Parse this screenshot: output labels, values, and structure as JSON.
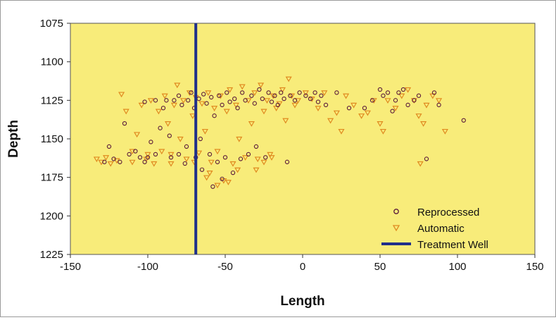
{
  "colors": {
    "plot_bg": "#f8ec7a",
    "reprocessed": "#5a1a3a",
    "automatic": "#e08a20",
    "well": "#1f2f8a"
  },
  "chart_data": {
    "type": "scatter",
    "title": "",
    "xlabel": "Length",
    "ylabel": "Depth",
    "xlim": [
      -150,
      150
    ],
    "ylim": [
      1075,
      1225
    ],
    "y_inverted": true,
    "x_ticks": [
      -150,
      -100,
      -50,
      0,
      50,
      100,
      150
    ],
    "y_ticks": [
      1075,
      1100,
      1125,
      1150,
      1175,
      1200,
      1225
    ],
    "grid": false,
    "legend_position": "bottom-right",
    "series": [
      {
        "name": "Reprocessed",
        "marker": "circle",
        "points": [
          [
            -128,
            1165
          ],
          [
            -125,
            1155
          ],
          [
            -122,
            1163
          ],
          [
            -118,
            1165
          ],
          [
            -115,
            1140
          ],
          [
            -112,
            1160
          ],
          [
            -108,
            1158
          ],
          [
            -105,
            1162
          ],
          [
            -102,
            1165
          ],
          [
            -100,
            1162
          ],
          [
            -98,
            1152
          ],
          [
            -95,
            1160
          ],
          [
            -92,
            1143
          ],
          [
            -90,
            1130
          ],
          [
            -88,
            1125
          ],
          [
            -86,
            1148
          ],
          [
            -85,
            1162
          ],
          [
            -83,
            1125
          ],
          [
            -80,
            1122
          ],
          [
            -78,
            1128
          ],
          [
            -76,
            1166
          ],
          [
            -75,
            1155
          ],
          [
            -74,
            1125
          ],
          [
            -72,
            1120
          ],
          [
            -70,
            1130
          ],
          [
            -69,
            1162
          ],
          [
            -67,
            1124
          ],
          [
            -66,
            1150
          ],
          [
            -64,
            1121
          ],
          [
            -62,
            1127
          ],
          [
            -60,
            1160
          ],
          [
            -59,
            1123
          ],
          [
            -57,
            1135
          ],
          [
            -55,
            1165
          ],
          [
            -54,
            1122
          ],
          [
            -52,
            1128
          ],
          [
            -50,
            1162
          ],
          [
            -49,
            1120
          ],
          [
            -47,
            1126
          ],
          [
            -45,
            1172
          ],
          [
            -44,
            1124
          ],
          [
            -42,
            1130
          ],
          [
            -40,
            1163
          ],
          [
            -39,
            1120
          ],
          [
            -37,
            1125
          ],
          [
            -35,
            1160
          ],
          [
            -33,
            1122
          ],
          [
            -31,
            1127
          ],
          [
            -30,
            1155
          ],
          [
            -28,
            1118
          ],
          [
            -26,
            1124
          ],
          [
            -24,
            1162
          ],
          [
            -22,
            1120
          ],
          [
            -20,
            1126
          ],
          [
            -18,
            1122
          ],
          [
            -16,
            1128
          ],
          [
            -14,
            1120
          ],
          [
            -12,
            1124
          ],
          [
            -10,
            1165
          ],
          [
            -8,
            1122
          ],
          [
            -5,
            1125
          ],
          [
            -2,
            1120
          ],
          [
            2,
            1122
          ],
          [
            5,
            1124
          ],
          [
            8,
            1120
          ],
          [
            10,
            1126
          ],
          [
            12,
            1122
          ],
          [
            15,
            1128
          ],
          [
            22,
            1120
          ],
          [
            30,
            1130
          ],
          [
            40,
            1130
          ],
          [
            45,
            1125
          ],
          [
            50,
            1118
          ],
          [
            52,
            1122
          ],
          [
            55,
            1120
          ],
          [
            58,
            1132
          ],
          [
            60,
            1125
          ],
          [
            62,
            1120
          ],
          [
            65,
            1118
          ],
          [
            68,
            1128
          ],
          [
            72,
            1125
          ],
          [
            75,
            1122
          ],
          [
            80,
            1163
          ],
          [
            85,
            1120
          ],
          [
            88,
            1128
          ],
          [
            104,
            1138
          ],
          [
            -58,
            1181
          ],
          [
            -52,
            1176
          ],
          [
            -65,
            1170
          ],
          [
            -80,
            1160
          ],
          [
            -95,
            1125
          ],
          [
            -102,
            1126
          ]
        ]
      },
      {
        "name": "Automatic",
        "marker": "triangle",
        "points": [
          [
            -133,
            1163
          ],
          [
            -130,
            1165
          ],
          [
            -127,
            1162
          ],
          [
            -124,
            1166
          ],
          [
            -120,
            1164
          ],
          [
            -117,
            1121
          ],
          [
            -114,
            1132
          ],
          [
            -110,
            1158
          ],
          [
            -107,
            1147
          ],
          [
            -104,
            1128
          ],
          [
            -101,
            1163
          ],
          [
            -98,
            1125
          ],
          [
            -96,
            1166
          ],
          [
            -93,
            1132
          ],
          [
            -91,
            1158
          ],
          [
            -89,
            1122
          ],
          [
            -87,
            1140
          ],
          [
            -85,
            1166
          ],
          [
            -83,
            1128
          ],
          [
            -81,
            1115
          ],
          [
            -79,
            1150
          ],
          [
            -77,
            1125
          ],
          [
            -75,
            1163
          ],
          [
            -73,
            1120
          ],
          [
            -71,
            1135
          ],
          [
            -69,
            1123
          ],
          [
            -67,
            1159
          ],
          [
            -65,
            1127
          ],
          [
            -63,
            1145
          ],
          [
            -61,
            1120
          ],
          [
            -59,
            1165
          ],
          [
            -57,
            1130
          ],
          [
            -55,
            1158
          ],
          [
            -53,
            1122
          ],
          [
            -51,
            1177
          ],
          [
            -49,
            1132
          ],
          [
            -47,
            1118
          ],
          [
            -45,
            1166
          ],
          [
            -43,
            1128
          ],
          [
            -41,
            1150
          ],
          [
            -39,
            1116
          ],
          [
            -37,
            1162
          ],
          [
            -35,
            1125
          ],
          [
            -33,
            1140
          ],
          [
            -31,
            1120
          ],
          [
            -29,
            1163
          ],
          [
            -27,
            1115
          ],
          [
            -25,
            1132
          ],
          [
            -23,
            1125
          ],
          [
            -21,
            1160
          ],
          [
            -19,
            1122
          ],
          [
            -17,
            1130
          ],
          [
            -15,
            1127
          ],
          [
            -13,
            1118
          ],
          [
            -11,
            1138
          ],
          [
            -9,
            1111
          ],
          [
            -7,
            1122
          ],
          [
            -5,
            1128
          ],
          [
            -3,
            1125
          ],
          [
            2,
            1120
          ],
          [
            6,
            1124
          ],
          [
            10,
            1130
          ],
          [
            14,
            1120
          ],
          [
            18,
            1138
          ],
          [
            22,
            1133
          ],
          [
            25,
            1145
          ],
          [
            28,
            1122
          ],
          [
            33,
            1128
          ],
          [
            38,
            1135
          ],
          [
            42,
            1133
          ],
          [
            46,
            1125
          ],
          [
            50,
            1140
          ],
          [
            52,
            1145
          ],
          [
            55,
            1125
          ],
          [
            60,
            1130
          ],
          [
            64,
            1122
          ],
          [
            68,
            1118
          ],
          [
            72,
            1125
          ],
          [
            75,
            1135
          ],
          [
            78,
            1140
          ],
          [
            80,
            1128
          ],
          [
            84,
            1122
          ],
          [
            88,
            1125
          ],
          [
            92,
            1145
          ],
          [
            76,
            1166
          ],
          [
            -55,
            1180
          ],
          [
            -48,
            1178
          ],
          [
            -42,
            1170
          ],
          [
            -60,
            1172
          ],
          [
            -70,
            1165
          ],
          [
            -85,
            1160
          ],
          [
            -100,
            1160
          ],
          [
            -110,
            1165
          ],
          [
            -62,
            1175
          ],
          [
            -30,
            1170
          ],
          [
            -25,
            1165
          ],
          [
            -20,
            1162
          ]
        ]
      },
      {
        "name": "Treatment Well",
        "marker": "line",
        "points": [
          [
            -69,
            1075
          ],
          [
            -69,
            1225
          ]
        ]
      }
    ]
  }
}
